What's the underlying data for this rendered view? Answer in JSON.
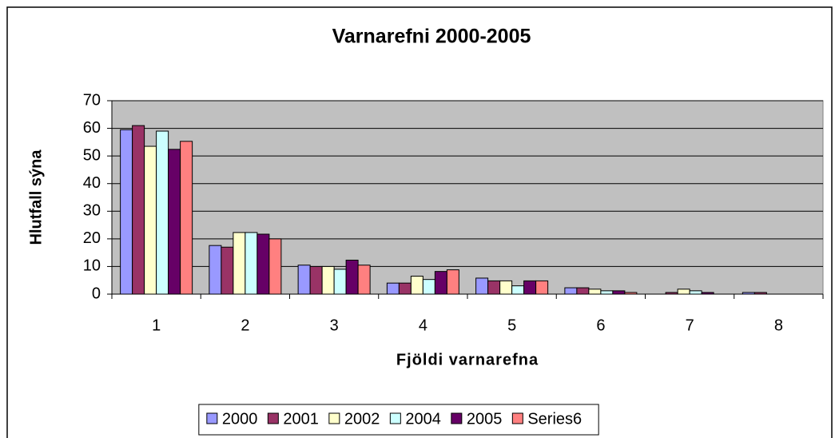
{
  "chart_data": {
    "type": "bar",
    "title": "Varnarefni  2000-2005",
    "x_label": "Fjöldi varnarefna",
    "y_label": "Hlutfall sýna",
    "categories": [
      "1",
      "2",
      "3",
      "4",
      "5",
      "6",
      "7",
      "8"
    ],
    "series": [
      {
        "name": "2000",
        "color": "#9999ff",
        "values": [
          59.5,
          17.6,
          10.5,
          4,
          5.8,
          2.3,
          0,
          0.6
        ]
      },
      {
        "name": "2001",
        "color": "#993366",
        "values": [
          61,
          17,
          10,
          4,
          4.8,
          2.3,
          0.6,
          0.6
        ]
      },
      {
        "name": "2002",
        "color": "#ffffcc",
        "values": [
          53.5,
          22.3,
          10,
          6.5,
          4.8,
          1.8,
          1.8,
          0
        ]
      },
      {
        "name": "2004",
        "color": "#ccffff",
        "values": [
          59,
          22.3,
          9,
          5.3,
          3,
          1.2,
          1.2,
          0
        ]
      },
      {
        "name": "2005",
        "color": "#660066",
        "values": [
          52.4,
          21.7,
          12.3,
          8.2,
          4.8,
          1.2,
          0.6,
          0
        ]
      },
      {
        "name": "Series6",
        "color": "#ff8080",
        "values": [
          55.3,
          20,
          10.5,
          8.8,
          4.8,
          0.6,
          0,
          0
        ]
      }
    ],
    "ylim": [
      0,
      70
    ],
    "yticks": [
      0,
      10,
      20,
      30,
      40,
      50,
      60,
      70
    ],
    "grid": true,
    "plot_background": "#c0c0c0",
    "legend": "bottom"
  }
}
